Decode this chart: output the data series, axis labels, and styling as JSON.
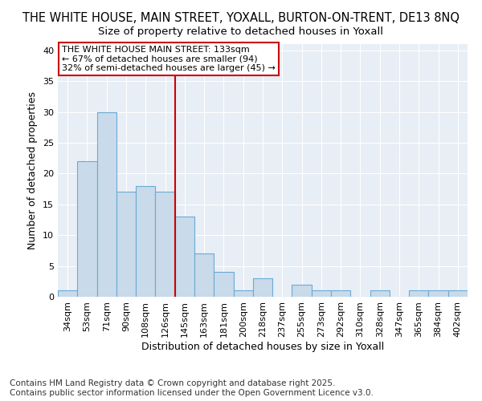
{
  "title_line1": "THE WHITE HOUSE, MAIN STREET, YOXALL, BURTON-ON-TRENT, DE13 8NQ",
  "title_line2": "Size of property relative to detached houses in Yoxall",
  "xlabel": "Distribution of detached houses by size in Yoxall",
  "ylabel": "Number of detached properties",
  "categories": [
    "34sqm",
    "53sqm",
    "71sqm",
    "90sqm",
    "108sqm",
    "126sqm",
    "145sqm",
    "163sqm",
    "181sqm",
    "200sqm",
    "218sqm",
    "237sqm",
    "255sqm",
    "273sqm",
    "292sqm",
    "310sqm",
    "328sqm",
    "347sqm",
    "365sqm",
    "384sqm",
    "402sqm"
  ],
  "values": [
    1,
    22,
    30,
    17,
    18,
    17,
    13,
    7,
    4,
    1,
    3,
    0,
    2,
    1,
    1,
    0,
    1,
    0,
    1,
    1,
    1
  ],
  "bar_color": "#c9daea",
  "bar_edge_color": "#6aaad4",
  "background_color": "#e8eef5",
  "grid_color": "#ffffff",
  "annotation_box_text": "THE WHITE HOUSE MAIN STREET: 133sqm\n← 67% of detached houses are smaller (94)\n32% of semi-detached houses are larger (45) →",
  "annotation_box_color": "#ffffff",
  "annotation_box_edge_color": "#cc0000",
  "vline_x_index": 5.5,
  "vline_color": "#cc0000",
  "ylim": [
    0,
    41
  ],
  "yticks": [
    0,
    5,
    10,
    15,
    20,
    25,
    30,
    35,
    40
  ],
  "footer_text": "Contains HM Land Registry data © Crown copyright and database right 2025.\nContains public sector information licensed under the Open Government Licence v3.0.",
  "title_fontsize": 10.5,
  "subtitle_fontsize": 9.5,
  "axis_label_fontsize": 9,
  "tick_fontsize": 8,
  "annotation_fontsize": 8,
  "footer_fontsize": 7.5
}
